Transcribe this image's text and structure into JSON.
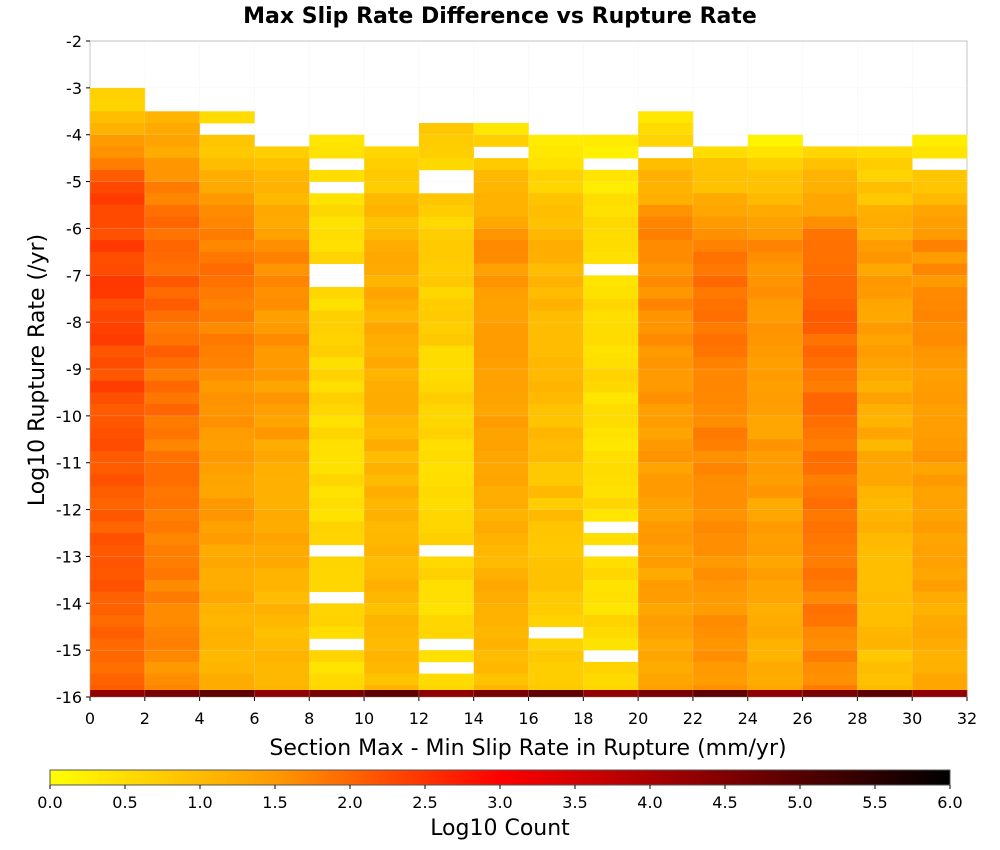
{
  "chart_data": {
    "type": "heatmap",
    "title": "Max Slip Rate Difference vs Rupture Rate",
    "xlabel": "Section Max - Min Slip Rate in Rupture (mm/yr)",
    "ylabel": "Log10 Rupture Rate (/yr)",
    "xlim": [
      0,
      32
    ],
    "ylim": [
      -16,
      -2
    ],
    "x_ticks": [
      "0",
      "2",
      "4",
      "6",
      "8",
      "10",
      "12",
      "14",
      "16",
      "18",
      "20",
      "22",
      "24",
      "26",
      "28",
      "30",
      "32"
    ],
    "y_ticks": [
      "-2",
      "-3",
      "-4",
      "-5",
      "-6",
      "-7",
      "-8",
      "-9",
      "-10",
      "-11",
      "-12",
      "-13",
      "-14",
      "-15",
      "-16"
    ],
    "x_bin_width": 2,
    "y_bin_height": 0.25,
    "grid": true,
    "colorbar": {
      "label": "Log10 Count",
      "min": 0.0,
      "max": 6.0,
      "ticks": [
        "0.0",
        "0.5",
        "1.0",
        "1.5",
        "2.0",
        "2.5",
        "3.0",
        "3.5",
        "4.0",
        "4.5",
        "5.0",
        "5.5",
        "6.0"
      ],
      "colors": [
        "#ffff00",
        "#ff9900",
        "#ff0000",
        "#000000"
      ]
    },
    "columns": [
      {
        "x_start": 0,
        "top": -3.0,
        "v_top": 0.6,
        "v_mid": 2.35,
        "v_bot": 2.0,
        "holes": []
      },
      {
        "x_start": 2,
        "top": -3.5,
        "v_top": 1.0,
        "v_mid": 2.0,
        "v_bot": 1.6,
        "holes": []
      },
      {
        "x_start": 4,
        "top": -3.5,
        "v_top": 0.5,
        "v_mid": 1.8,
        "v_bot": 1.1,
        "holes": [
          -3.75
        ]
      },
      {
        "x_start": 6,
        "top": -4.25,
        "v_top": 0.8,
        "v_mid": 1.6,
        "v_bot": 1.0,
        "holes": []
      },
      {
        "x_start": 8,
        "top": -4.0,
        "v_top": 0.4,
        "v_mid": 0.6,
        "v_bot": 0.5,
        "holes": [
          -4.5,
          -5.0,
          -6.75,
          -7.0,
          -12.75,
          -13.75,
          -14.75
        ]
      },
      {
        "x_start": 10,
        "top": -4.25,
        "v_top": 0.7,
        "v_mid": 1.2,
        "v_bot": 1.0,
        "holes": []
      },
      {
        "x_start": 12,
        "top": -3.75,
        "v_top": 0.7,
        "v_mid": 0.7,
        "v_bot": 0.5,
        "holes": [
          -4.75,
          -5.0,
          -12.75,
          -14.75,
          -15.25
        ]
      },
      {
        "x_start": 14,
        "top": -3.75,
        "v_top": 0.5,
        "v_mid": 1.5,
        "v_bot": 1.0,
        "holes": [
          -4.25
        ]
      },
      {
        "x_start": 16,
        "top": -4.0,
        "v_top": 0.4,
        "v_mid": 1.1,
        "v_bot": 0.7,
        "holes": [
          -14.5
        ]
      },
      {
        "x_start": 18,
        "top": -4.0,
        "v_top": 0.3,
        "v_mid": 0.5,
        "v_bot": 0.5,
        "holes": [
          -4.5,
          -6.75,
          -12.25,
          -12.75,
          -15.0
        ]
      },
      {
        "x_start": 20,
        "top": -3.5,
        "v_top": 0.3,
        "v_mid": 1.6,
        "v_bot": 1.3,
        "holes": [
          -4.25
        ]
      },
      {
        "x_start": 22,
        "top": -4.25,
        "v_top": 0.6,
        "v_mid": 1.9,
        "v_bot": 1.5,
        "holes": []
      },
      {
        "x_start": 24,
        "top": -4.0,
        "v_top": 0.3,
        "v_mid": 1.6,
        "v_bot": 1.2,
        "holes": []
      },
      {
        "x_start": 26,
        "top": -4.25,
        "v_top": 0.7,
        "v_mid": 2.0,
        "v_bot": 1.7,
        "holes": []
      },
      {
        "x_start": 28,
        "top": -4.25,
        "v_top": 0.6,
        "v_mid": 1.4,
        "v_bot": 0.9,
        "holes": []
      },
      {
        "x_start": 30,
        "top": -4.0,
        "v_top": 0.4,
        "v_mid": 1.6,
        "v_bot": 1.2,
        "holes": [
          -4.5
        ]
      }
    ],
    "band_at_min": {
      "y_start": -16.0,
      "y_end": -15.9,
      "value": 4.6
    }
  }
}
